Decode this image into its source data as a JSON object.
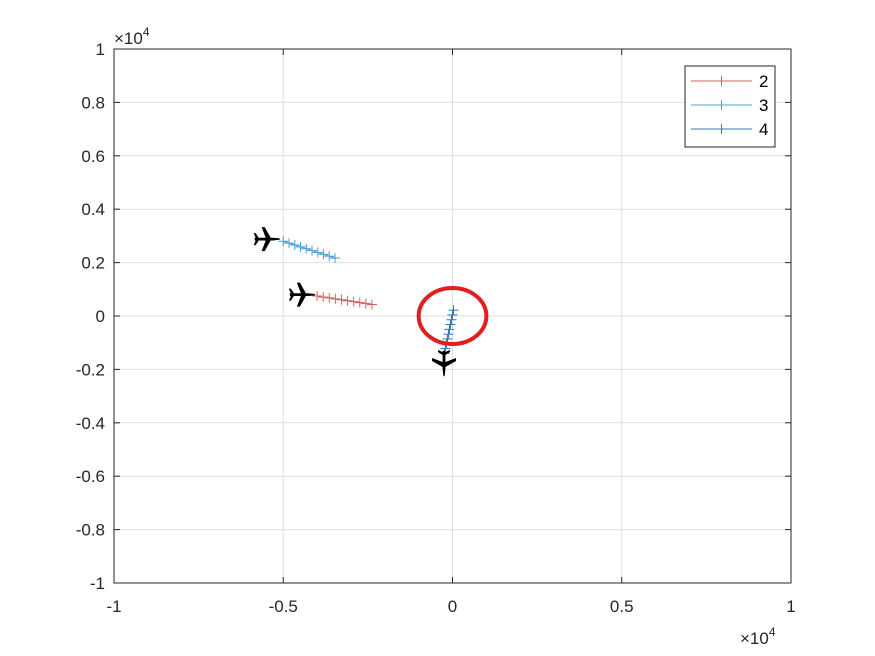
{
  "chart_data": {
    "type": "line",
    "title": "",
    "xlabel": "",
    "ylabel": "",
    "xlim": [
      -1,
      1
    ],
    "ylim": [
      -1,
      1
    ],
    "x_multiplier": "×10",
    "x_multiplier_exp": "4",
    "y_multiplier": "×10",
    "y_multiplier_exp": "4",
    "x_ticks": [
      "-1",
      "-0.5",
      "0",
      "0.5",
      "1"
    ],
    "x_tick_values": [
      -1,
      -0.5,
      0,
      0.5,
      1
    ],
    "y_ticks": [
      "-1",
      "-0.8",
      "-0.6",
      "-0.4",
      "-0.2",
      "0",
      "0.2",
      "0.4",
      "0.6",
      "0.8",
      "1"
    ],
    "y_tick_values": [
      -1,
      -0.8,
      -0.6,
      -0.4,
      -0.2,
      0,
      0.2,
      0.4,
      0.6,
      0.8,
      1
    ],
    "grid": true,
    "legend_position": "top-right",
    "series": [
      {
        "name": "2",
        "color": "#d95f5f",
        "marker": "+",
        "x": [
          -0.4,
          -0.382,
          -0.364,
          -0.346,
          -0.328,
          -0.31,
          -0.292,
          -0.274,
          -0.256,
          -0.238
        ],
        "y": [
          0.075,
          0.071,
          0.068,
          0.064,
          0.061,
          0.057,
          0.054,
          0.05,
          0.047,
          0.043
        ],
        "plane": {
          "x": -0.442,
          "y": 0.08,
          "angle": 0
        }
      },
      {
        "name": "3",
        "color": "#4d9fd6",
        "marker": "+",
        "x": [
          -0.5,
          -0.483,
          -0.466,
          -0.449,
          -0.432,
          -0.415,
          -0.398,
          -0.381,
          -0.364,
          -0.347
        ],
        "y": [
          0.28,
          0.273,
          0.266,
          0.259,
          0.252,
          0.245,
          0.238,
          0.231,
          0.224,
          0.217
        ],
        "plane": {
          "x": -0.546,
          "y": 0.288,
          "angle": 0
        }
      },
      {
        "name": "4",
        "color": "#3a74b3",
        "marker": "+",
        "x": [
          -0.024,
          -0.021,
          -0.018,
          -0.015,
          -0.012,
          -0.009,
          -0.006,
          -0.003,
          0.0,
          0.003
        ],
        "y": [
          -0.14,
          -0.122,
          -0.104,
          -0.086,
          -0.068,
          -0.05,
          -0.032,
          -0.014,
          0.004,
          0.022
        ],
        "plane": {
          "x": -0.025,
          "y": -0.18,
          "angle": 90
        }
      }
    ],
    "annotations": [
      {
        "type": "ellipse",
        "cx": 0.0,
        "cy": 0.0,
        "rx": 0.1,
        "ry": 0.105,
        "color": "#e02020"
      }
    ]
  }
}
